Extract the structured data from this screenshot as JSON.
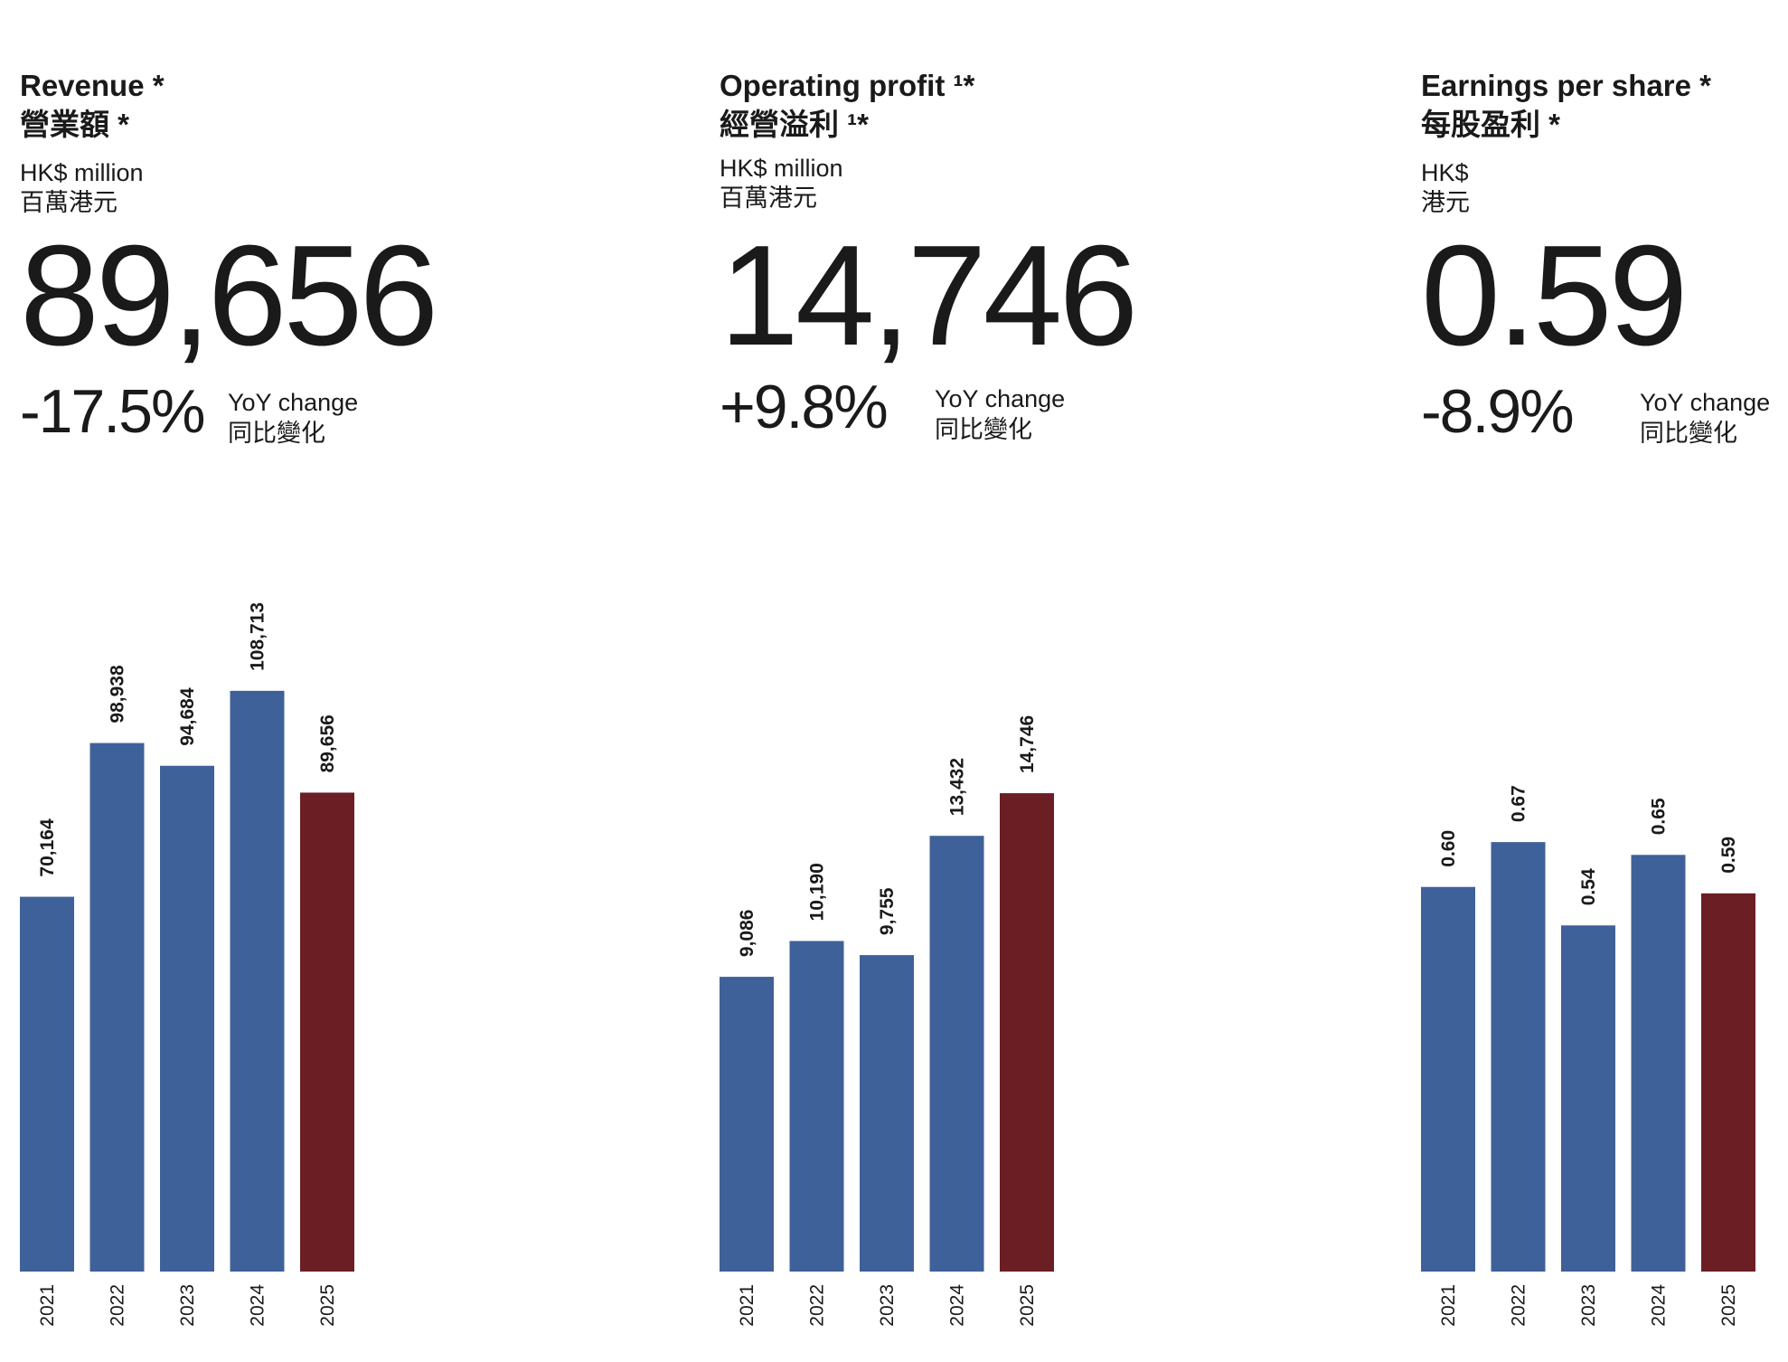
{
  "colors": {
    "bar": "#3f6199",
    "highlight": "#6b1e24",
    "text": "#1a1a1a"
  },
  "panels": [
    {
      "title_en": "Revenue *",
      "title_zh": "營業額 *",
      "unit_en": "HK$ million",
      "unit_zh": "百萬港元",
      "value": "89,656",
      "yoy": "-17.5%",
      "yoy_label_en": "YoY change",
      "yoy_label_zh": "同比變化"
    },
    {
      "title_en": "Operating profit ¹*",
      "title_zh": "經營溢利 ¹*",
      "unit_en": "HK$ million",
      "unit_zh": "百萬港元",
      "value": "14,746",
      "yoy": "+9.8%",
      "yoy_label_en": "YoY change",
      "yoy_label_zh": "同比變化"
    },
    {
      "title_en": "Earnings per share *",
      "title_zh": "每股盈利 *",
      "unit_en": "HK$",
      "unit_zh": "港元",
      "value": "0.59",
      "yoy": "-8.9%",
      "yoy_label_en": "YoY change",
      "yoy_label_zh": "同比變化"
    }
  ],
  "chart_data": [
    {
      "type": "bar",
      "categories": [
        "2021",
        "2022",
        "2023",
        "2024",
        "2025"
      ],
      "values": [
        70164,
        98938,
        94684,
        108713,
        89656
      ],
      "value_labels": [
        "70,164",
        "98,938",
        "94,684",
        "108,713",
        "89,656"
      ],
      "highlight_index": 4,
      "ylim": [
        0,
        150000
      ],
      "grid": false
    },
    {
      "type": "bar",
      "categories": [
        "2021",
        "2022",
        "2023",
        "2024",
        "2025"
      ],
      "values": [
        9086,
        10190,
        9755,
        13432,
        14746
      ],
      "value_labels": [
        "9,086",
        "10,190",
        "9,755",
        "13,432",
        "14,746"
      ],
      "highlight_index": 4,
      "ylim": [
        0,
        24700
      ],
      "grid": false
    },
    {
      "type": "bar",
      "categories": [
        "2021",
        "2022",
        "2023",
        "2024",
        "2025"
      ],
      "values": [
        0.6,
        0.67,
        0.54,
        0.65,
        0.59
      ],
      "value_labels": [
        "0.60",
        "0.67",
        "0.54",
        "0.65",
        "0.59"
      ],
      "highlight_index": 4,
      "ylim": [
        0,
        1.25
      ],
      "grid": false
    }
  ]
}
